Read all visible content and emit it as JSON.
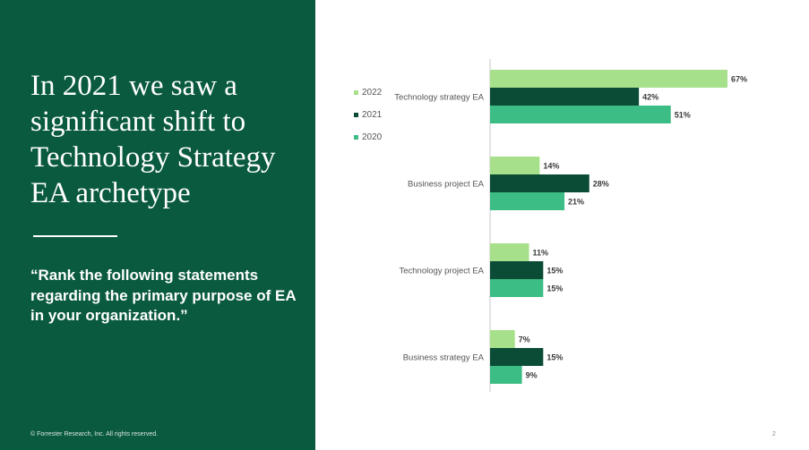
{
  "slide": {
    "headline": "In 2021 we saw a significant shift to Technology Strategy EA archetype",
    "question": "“Rank the following statements regarding the primary purpose of EA in your organization.”",
    "footer": "© Forrester Research, Inc. All rights reserved.",
    "page_number": "2"
  },
  "colors": {
    "panel": "#0a5a40",
    "s2022": "#a6e08a",
    "s2021": "#0b4c36",
    "s2020": "#3dbd86"
  },
  "chart_data": {
    "type": "bar",
    "orientation": "horizontal",
    "categories": [
      "Technology strategy EA",
      "Business project EA",
      "Technology project EA",
      "Business strategy EA"
    ],
    "series": [
      {
        "name": "2022",
        "values": [
          67,
          14,
          11,
          7
        ],
        "labels": [
          "67%",
          "14%",
          "11%",
          "7%"
        ],
        "color": "#a6e08a"
      },
      {
        "name": "2021",
        "values": [
          42,
          28,
          15,
          15
        ],
        "labels": [
          "42%",
          "28%",
          "15%",
          "15%"
        ],
        "color": "#0b4c36"
      },
      {
        "name": "2020",
        "values": [
          51,
          21,
          15,
          9
        ],
        "labels": [
          "51%",
          "21%",
          "15%",
          "9%"
        ],
        "color": "#3dbd86"
      }
    ],
    "unit": "%",
    "xlim": [
      0,
      67
    ],
    "legend_position": "left",
    "grid": false
  }
}
